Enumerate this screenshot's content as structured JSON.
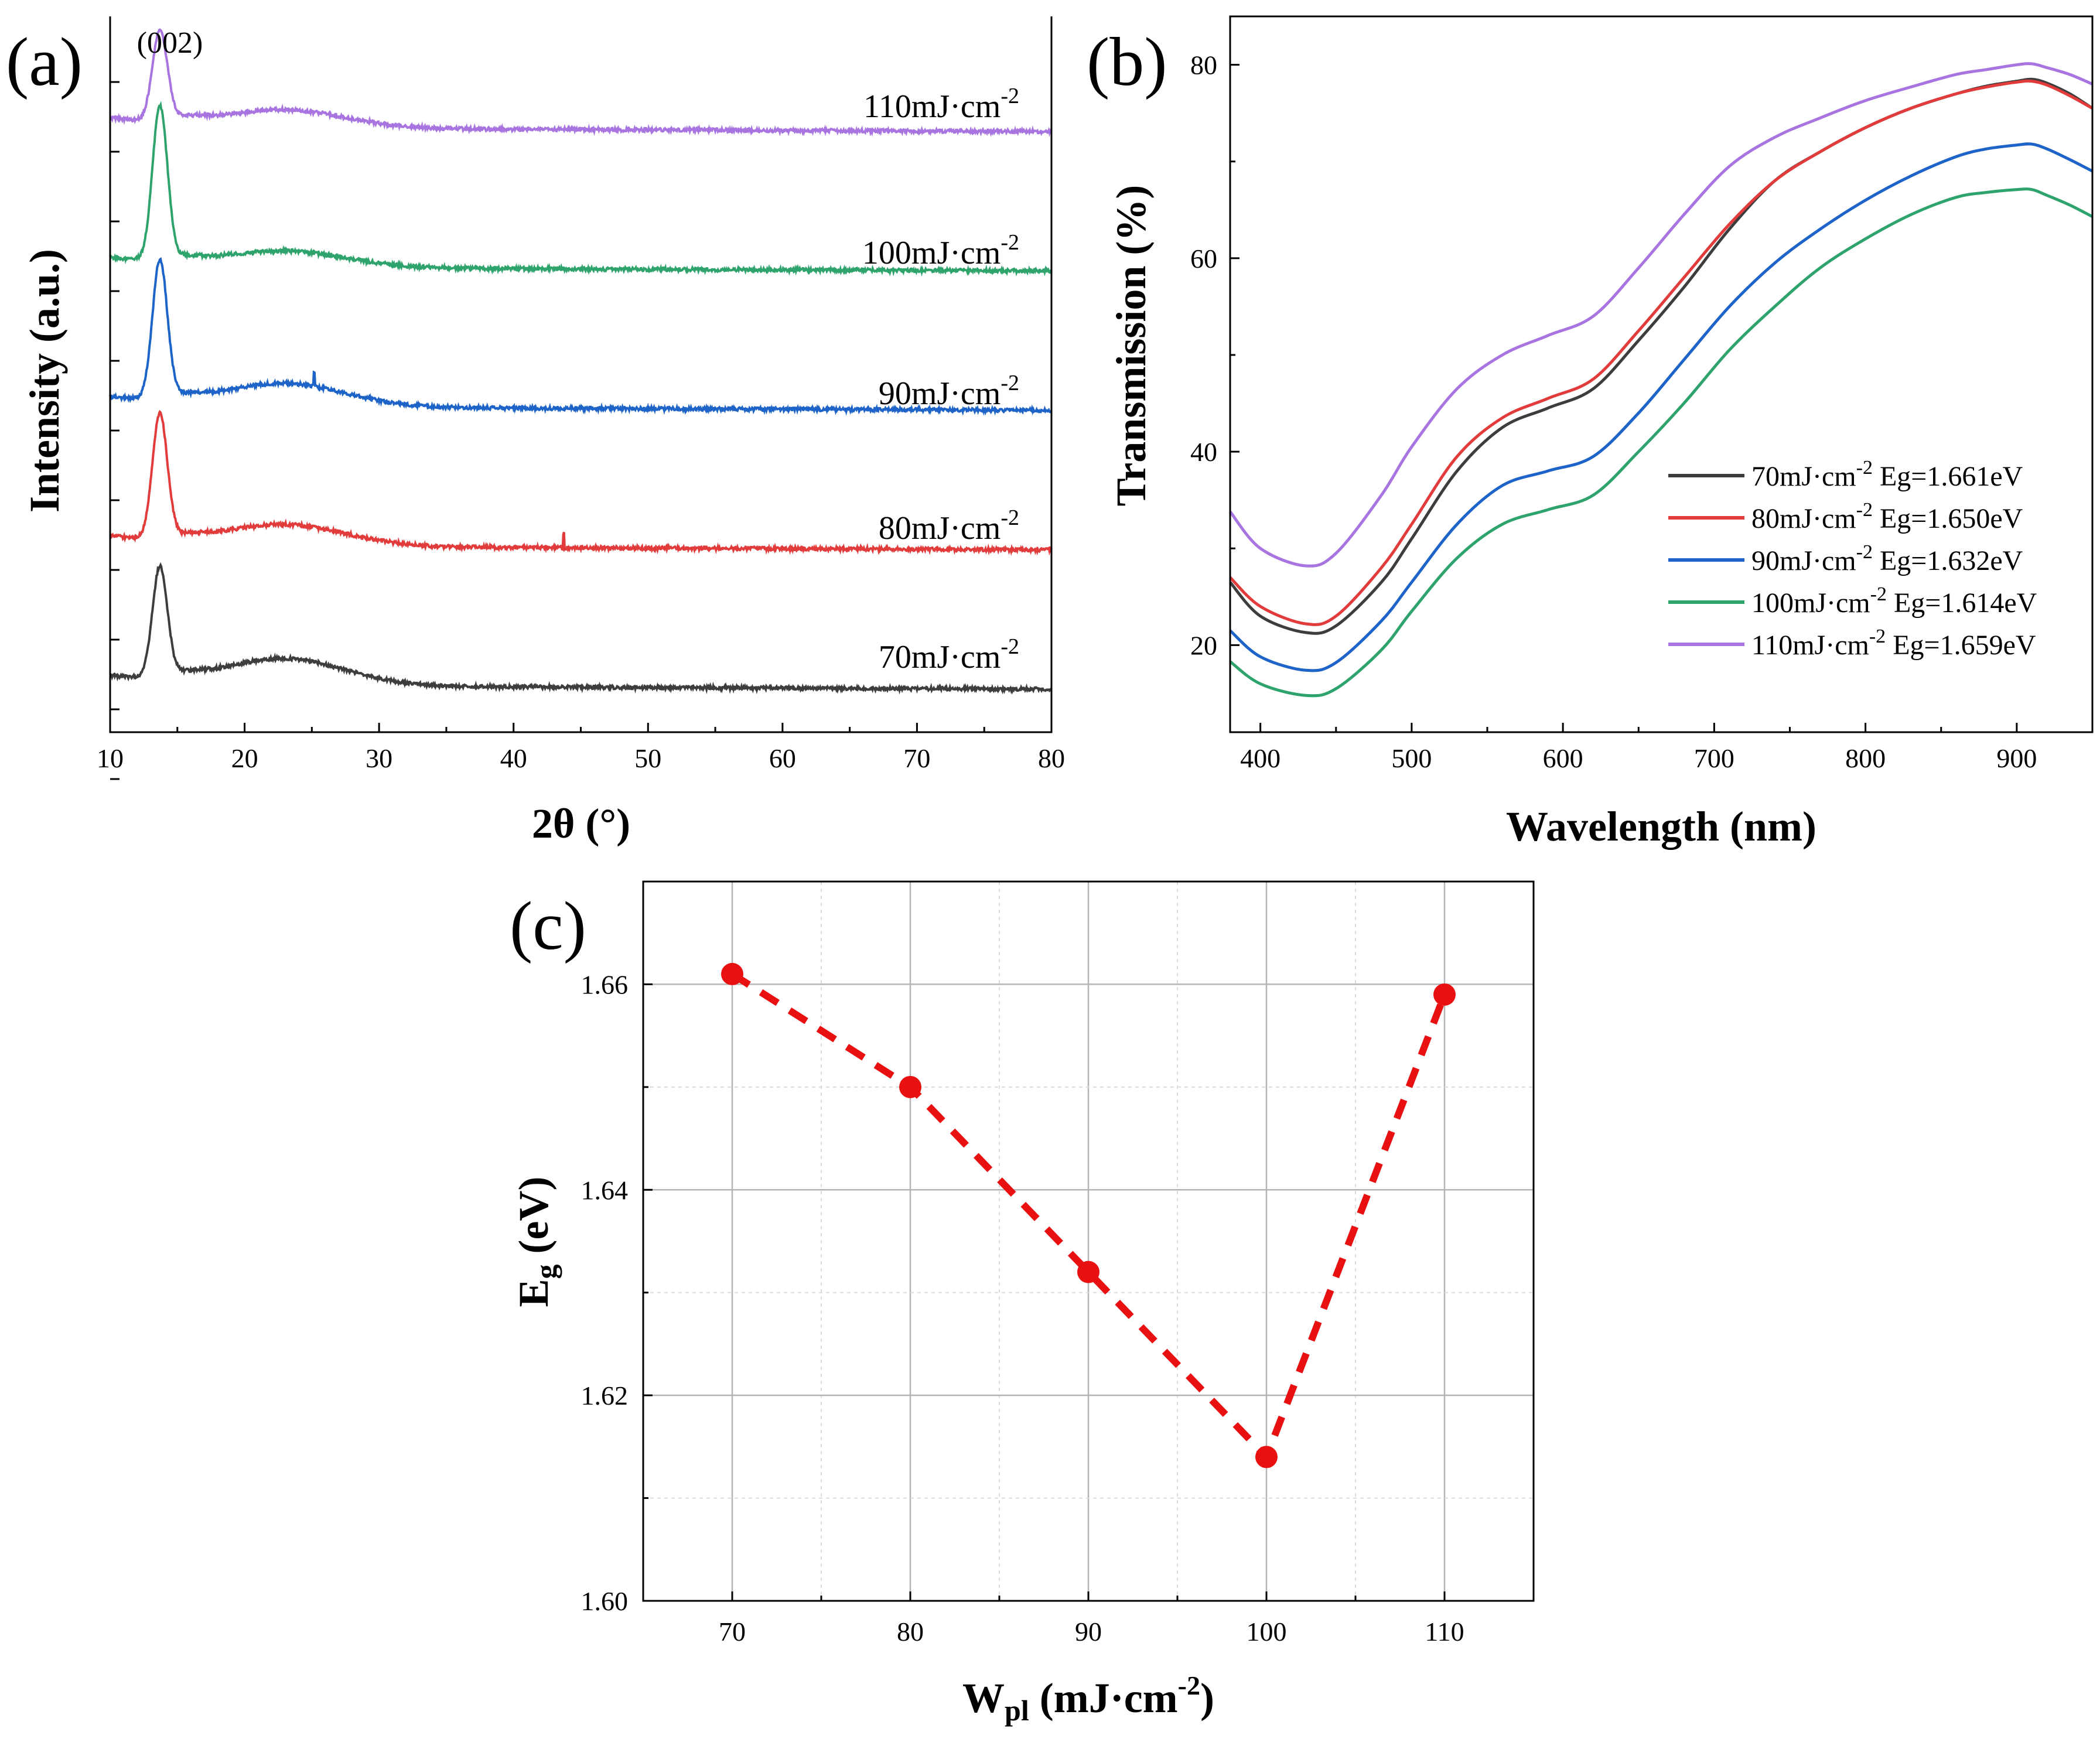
{
  "chart_data": [
    {
      "panel": "(a)",
      "type": "line",
      "xlabel": "2θ (°)",
      "ylabel": "Intensity (a.u.)",
      "xlim": [
        10,
        80
      ],
      "xticks": [
        10,
        20,
        30,
        40,
        50,
        60,
        70,
        80
      ],
      "annotation": "(002)",
      "peak_2theta": 13.7,
      "series": [
        {
          "name": "70mJ·cm-2",
          "label": "70mJ·cm",
          "exp": "-2",
          "color": "#3d3d3d",
          "offset": 0,
          "peak": 6.2,
          "hump": 1.5,
          "spike": null
        },
        {
          "name": "80mJ·cm-2",
          "label": "80mJ·cm",
          "exp": "-2",
          "color": "#e23b3b",
          "offset": 1,
          "peak": 7.0,
          "hump": 1.2,
          "spike": 43.7
        },
        {
          "name": "90mJ·cm-2",
          "label": "90mJ·cm",
          "exp": "-2",
          "color": "#1e64c8",
          "offset": 2,
          "peak": 7.8,
          "hump": 1.3,
          "spike": 25.2
        },
        {
          "name": "100mJ·cm-2",
          "label": "100mJ·cm",
          "exp": "-2",
          "color": "#2ea36b",
          "offset": 3,
          "peak": 8.7,
          "hump": 0.9,
          "spike": null
        },
        {
          "name": "110mJ·cm-2",
          "label": "110mJ·cm",
          "exp": "-2",
          "color": "#a875e0",
          "offset": 4,
          "peak": 5.0,
          "hump": 1.0,
          "spike": null
        }
      ]
    },
    {
      "panel": "(b)",
      "type": "line",
      "xlabel": "Wavelength (nm)",
      "ylabel": "Transmission (%)",
      "xlim": [
        380,
        950
      ],
      "ylim": [
        11,
        85
      ],
      "xticks": [
        400,
        500,
        600,
        700,
        800,
        900
      ],
      "yticks": [
        20,
        40,
        60,
        80
      ],
      "x": [
        380,
        400,
        430,
        450,
        480,
        500,
        530,
        560,
        590,
        620,
        650,
        680,
        710,
        740,
        770,
        800,
        830,
        860,
        880,
        900,
        910,
        920,
        935,
        950
      ],
      "series": [
        {
          "name": "70mJ·cm-2 Eg=1.661eV",
          "label": "70mJ·cm",
          "exp": "-2",
          "eg": " Eg=1.661eV",
          "color": "#3d3d3d",
          "values": [
            26.5,
            23.0,
            21.3,
            22.0,
            26.5,
            31.0,
            38.0,
            42.5,
            44.5,
            46.5,
            51.5,
            57.0,
            63.0,
            68.0,
            71.0,
            73.5,
            75.5,
            77.0,
            77.8,
            78.3,
            78.5,
            78.1,
            77.0,
            75.5
          ]
        },
        {
          "name": "80mJ·cm-2 Eg=1.650eV",
          "label": "80mJ·cm",
          "exp": "-2",
          "eg": " Eg=1.650eV",
          "color": "#e23b3b",
          "values": [
            27.0,
            24.0,
            22.2,
            23.0,
            28.0,
            32.5,
            39.5,
            43.5,
            45.5,
            47.5,
            52.5,
            58.0,
            63.5,
            68.0,
            71.0,
            73.5,
            75.5,
            77.0,
            77.7,
            78.2,
            78.3,
            77.9,
            76.8,
            75.5
          ]
        },
        {
          "name": "90mJ·cm-2 Eg=1.632eV",
          "label": "90mJ·cm",
          "exp": "-2",
          "eg": " Eg=1.632eV",
          "color": "#1e64c8",
          "values": [
            21.5,
            18.8,
            17.4,
            18.2,
            22.5,
            26.5,
            32.5,
            36.5,
            38.0,
            39.5,
            44.0,
            49.5,
            55.0,
            59.5,
            63.0,
            66.0,
            68.5,
            70.5,
            71.3,
            71.7,
            71.8,
            71.3,
            70.2,
            69.0
          ]
        },
        {
          "name": "100mJ·cm-2 Eg=1.614eV",
          "label": "100mJ·cm",
          "exp": "-2",
          "eg": " Eg=1.614eV",
          "color": "#2ea36b",
          "values": [
            18.3,
            16.0,
            14.8,
            15.5,
            19.5,
            23.5,
            29.0,
            32.5,
            34.0,
            35.5,
            40.0,
            45.0,
            50.5,
            55.0,
            59.0,
            62.0,
            64.5,
            66.3,
            66.8,
            67.1,
            67.1,
            66.5,
            65.5,
            64.3
          ]
        },
        {
          "name": "110mJ·cm-2 Eg=1.659eV",
          "label": "110mJ·cm",
          "exp": "-2",
          "eg": " Eg=1.659eV",
          "color": "#a875e0",
          "values": [
            33.8,
            30.0,
            28.2,
            29.5,
            35.5,
            40.5,
            46.5,
            50.0,
            52.0,
            54.0,
            59.0,
            64.5,
            69.5,
            72.5,
            74.5,
            76.3,
            77.7,
            79.0,
            79.5,
            80.0,
            80.1,
            79.7,
            79.0,
            78.0
          ]
        }
      ]
    },
    {
      "panel": "(c)",
      "type": "line",
      "xlabel": "W",
      "xlabel_sub": "pl",
      "xlabel_unit": " (mJ·cm",
      "xlabel_exp": "-2",
      "xlabel_close": ")",
      "ylabel": "E",
      "ylabel_sub": "g",
      "ylabel_unit": " (eV)",
      "xlim": [
        65,
        115
      ],
      "ylim": [
        1.6,
        1.67
      ],
      "xticks": [
        70,
        80,
        90,
        100,
        110
      ],
      "yticks": [
        1.6,
        1.62,
        1.64,
        1.66
      ],
      "ytick_labels": [
        "1.60",
        "1.62",
        "1.64",
        "1.66"
      ],
      "x": [
        70,
        80,
        90,
        100,
        110
      ],
      "values": [
        1.661,
        1.65,
        1.632,
        1.614,
        1.659
      ],
      "color": "#e81010"
    }
  ]
}
